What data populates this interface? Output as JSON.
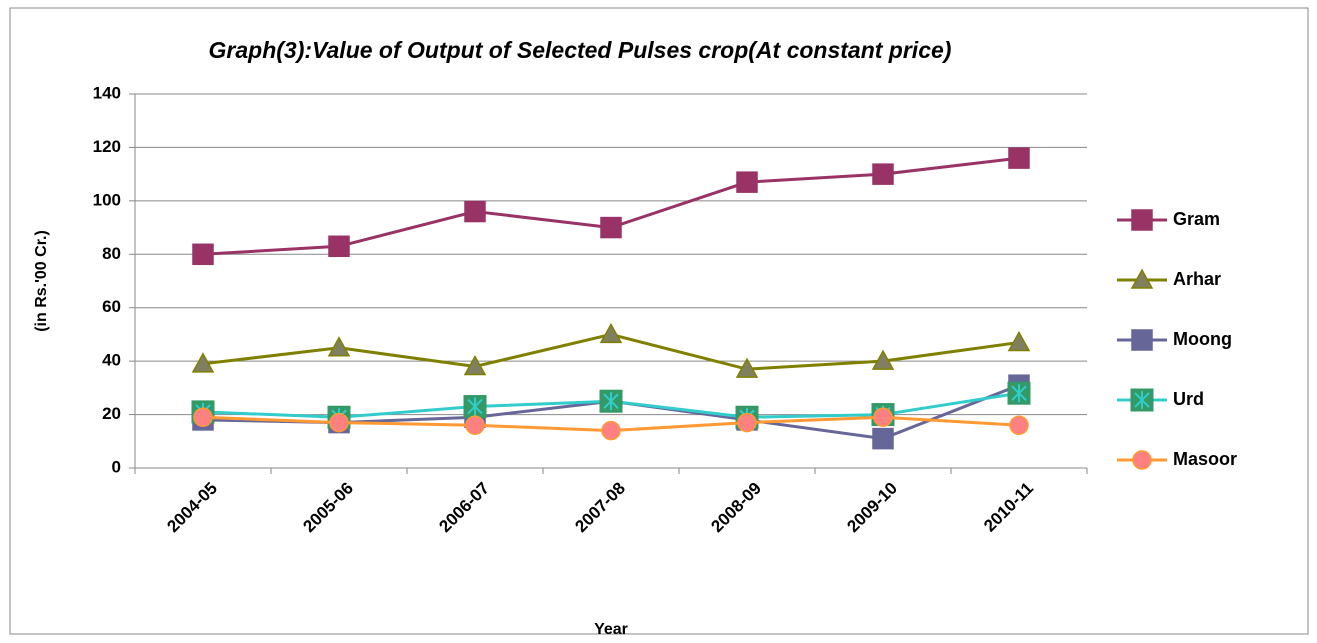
{
  "chart_data": {
    "type": "line",
    "title": "Graph(3):Value of Output of Selected Pulses crop(At constant price)",
    "y_label": "(in Rs.'00 Cr.)",
    "x_label": "Year",
    "categories": [
      "2004-05",
      "2005-06",
      "2006-07",
      "2007-08",
      "2008-09",
      "2009-10",
      "2010-11"
    ],
    "series": [
      {
        "name": "Gram",
        "color": "#993366",
        "marker": "square",
        "marker_color": "#993366",
        "values": [
          80,
          83,
          96,
          90,
          107,
          110,
          116
        ]
      },
      {
        "name": "Arhar",
        "color": "#808000",
        "marker": "triangle",
        "marker_color": "#808060",
        "values": [
          39,
          45,
          38,
          50,
          37,
          40,
          47
        ]
      },
      {
        "name": "Moong",
        "color": "#666699",
        "marker": "square",
        "marker_color": "#666699",
        "values": [
          18,
          17,
          19,
          25,
          18,
          11,
          31
        ]
      },
      {
        "name": "Urd",
        "color": "#33cccc",
        "marker": "square-x",
        "marker_color": "#339966",
        "values": [
          21,
          19,
          23,
          25,
          19,
          20,
          28
        ]
      },
      {
        "name": "Masoor",
        "color": "#ff9933",
        "marker": "circle",
        "marker_color": "#ff8080",
        "values": [
          19,
          17,
          16,
          14,
          17,
          19,
          16
        ]
      }
    ],
    "ylim": [
      0,
      140
    ],
    "yticks": [
      0,
      20,
      40,
      60,
      80,
      100,
      120,
      140
    ],
    "grid": true,
    "legend": "right"
  }
}
